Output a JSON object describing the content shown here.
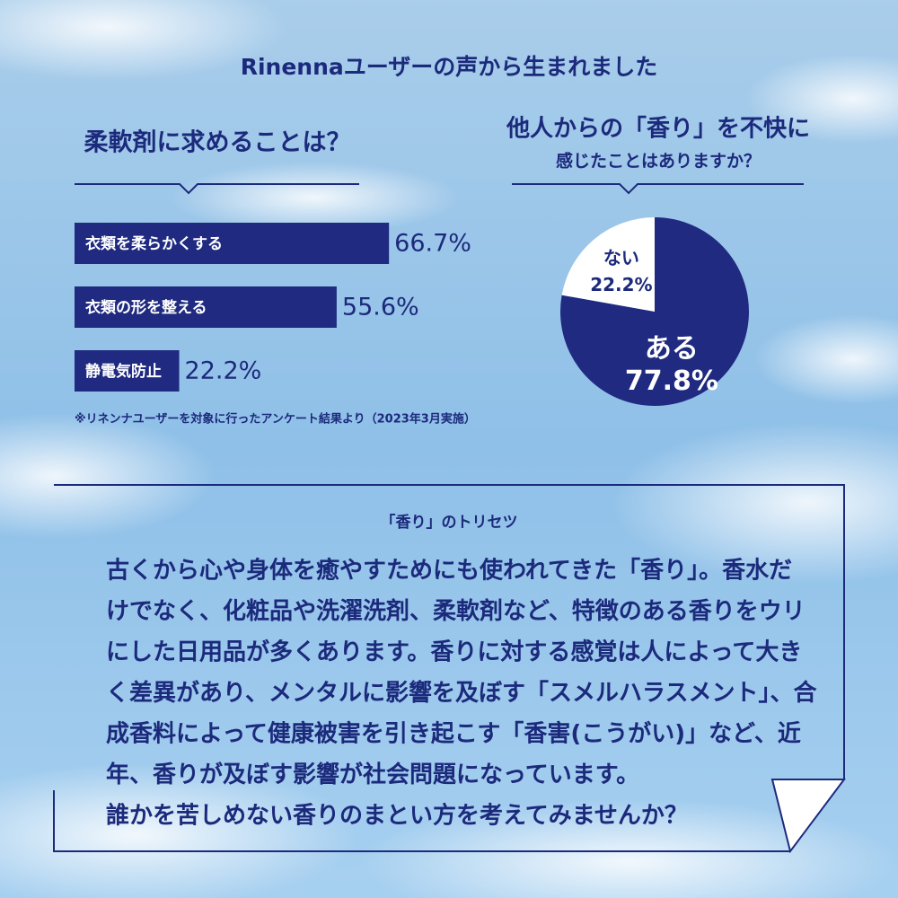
{
  "header": {
    "title": "Rinennaユーザーの声から生まれました"
  },
  "chart_data": [
    {
      "type": "bar",
      "title": "柔軟剤に求めることは？",
      "categories": [
        "衣類を柔らかくする",
        "衣類の形を整える",
        "静電気防止"
      ],
      "values": [
        66.7,
        55.6,
        22.2
      ],
      "value_labels": [
        "66.7%",
        "55.6%",
        "22.2%"
      ],
      "color": "#1f2a80",
      "note": "※リネンナユーザーを対象に行ったアンケート結果より（2023年3月実施）"
    },
    {
      "type": "pie",
      "title": "他人からの「香り」を不快に",
      "subtitle": "感じたことはありますか？",
      "categories": [
        "ある",
        "ない"
      ],
      "values": [
        77.8,
        22.2
      ],
      "value_labels": [
        "77.8%",
        "22.2%"
      ],
      "colors": [
        "#1f2a80",
        "#ffffff"
      ]
    }
  ],
  "section": {
    "title": "「香り」のトリセツ",
    "lines": [
      "古くから心や身体を癒やすためにも使われてきた「香り」。香水だ",
      "けでなく、化粧品や洗濯洗剤、柔軟剤など、特徴のある香りをウリ",
      "にした日用品が多くあります。香りに対する感覚は人によって大き",
      "く差異があり、メンタルに影響を及ぼす「スメルハラスメント」、合",
      "成香料によって健康被害を引き起こす「香害(こうがい)」など、近",
      "年、香りが及ぼす影響が社会問題になっています。",
      "誰かを苦しめない香りのまとい方を考えてみませんか？"
    ]
  }
}
